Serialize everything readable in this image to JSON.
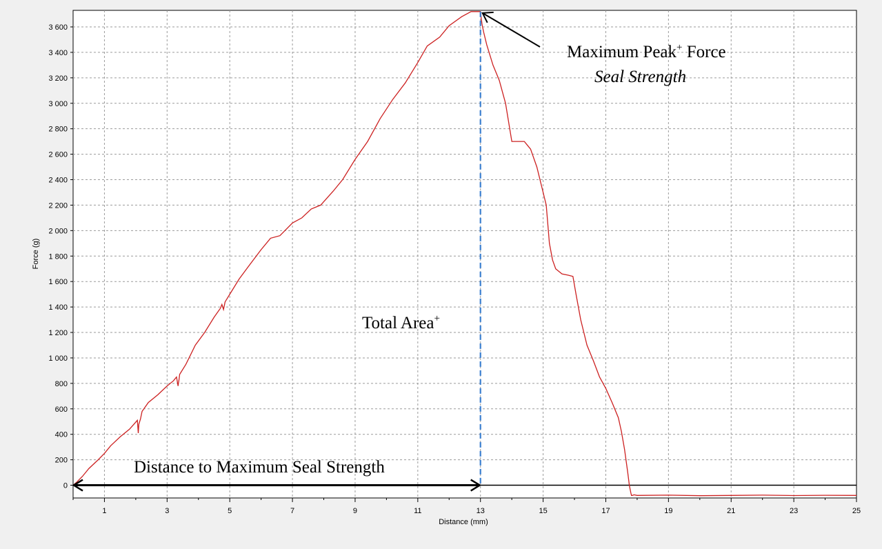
{
  "chart_data": {
    "type": "line",
    "xlabel": "Distance (mm)",
    "ylabel": "Force (g)",
    "xlim": [
      0,
      25
    ],
    "ylim": [
      -100,
      3730
    ],
    "x_ticks": [
      1,
      3,
      5,
      7,
      9,
      11,
      13,
      15,
      17,
      19,
      21,
      23,
      25
    ],
    "x_tick_labels": [
      "1",
      "3",
      "5",
      "7",
      "9",
      "11",
      "13",
      "15",
      "17",
      "19",
      "21",
      "23",
      "25"
    ],
    "y_ticks": [
      0,
      200,
      400,
      600,
      800,
      1000,
      1200,
      1400,
      1600,
      1800,
      2000,
      2200,
      2400,
      2600,
      2800,
      3000,
      3200,
      3400,
      3600
    ],
    "y_tick_labels": [
      "0",
      "200",
      "400",
      "600",
      "800",
      "1 000",
      "1 200",
      "1 400",
      "1 600",
      "1 800",
      "2 000",
      "2 200",
      "2 400",
      "2 600",
      "2 800",
      "3 000",
      "3 200",
      "3 400",
      "3 600"
    ],
    "grid": true,
    "colors": {
      "series": "#cc2020",
      "peak_line": "#3b7fd0",
      "background": "#ffffff",
      "frame": "#f0f0f0"
    },
    "series": [
      {
        "x": [
          0,
          0.1,
          0.3,
          0.5,
          0.8,
          1.0,
          1.2,
          1.5,
          1.8,
          2.05,
          2.08,
          2.1,
          2.15,
          2.2,
          2.4,
          2.7,
          3.0,
          3.2,
          3.3,
          3.35,
          3.38,
          3.4,
          3.6,
          3.9,
          4.2,
          4.5,
          4.7,
          4.75,
          4.8,
          4.85,
          5.0,
          5.3,
          5.6,
          6.0,
          6.3,
          6.6,
          7.0,
          7.3,
          7.6,
          7.9,
          8.3,
          8.6,
          9.0,
          9.4,
          9.8,
          10.2,
          10.6,
          11.0,
          11.3,
          11.7,
          12.0,
          12.4,
          12.7,
          12.9,
          13.0,
          13.05,
          13.1,
          13.2,
          13.4,
          13.6,
          13.8,
          14.0,
          14.2,
          14.4,
          14.6,
          14.8,
          15.0,
          15.1,
          15.2,
          15.3,
          15.4,
          15.6,
          15.8,
          15.95,
          16.05,
          16.2,
          16.4,
          16.6,
          16.8,
          17.0,
          17.2,
          17.4,
          17.5,
          17.6,
          17.7,
          17.75,
          17.8,
          17.82,
          17.85,
          17.9,
          18.0,
          19.0,
          20.0,
          21.0,
          22.0,
          23.0,
          24.0,
          25.0
        ],
        "y": [
          0,
          20,
          70,
          130,
          200,
          250,
          310,
          380,
          440,
          510,
          410,
          480,
          520,
          580,
          650,
          710,
          780,
          820,
          850,
          780,
          830,
          870,
          950,
          1100,
          1200,
          1320,
          1390,
          1420,
          1380,
          1440,
          1500,
          1620,
          1720,
          1850,
          1940,
          1960,
          2060,
          2100,
          2170,
          2200,
          2310,
          2400,
          2560,
          2700,
          2880,
          3030,
          3160,
          3320,
          3450,
          3520,
          3610,
          3680,
          3720,
          3720,
          3720,
          3620,
          3560,
          3460,
          3300,
          3180,
          3000,
          2700,
          2700,
          2700,
          2640,
          2500,
          2300,
          2200,
          1900,
          1770,
          1700,
          1660,
          1650,
          1640,
          1500,
          1300,
          1100,
          980,
          850,
          760,
          650,
          530,
          420,
          280,
          100,
          0,
          -60,
          -80,
          -80,
          -75,
          -80,
          -78,
          -82,
          -80,
          -78,
          -81,
          -79,
          -80
        ]
      }
    ],
    "annotations": {
      "peak_title_main": "Maximum Peak",
      "peak_title_sup": "+",
      "peak_title_end": " Force",
      "peak_subtitle": "Seal Strength",
      "area_main": "Total Area",
      "area_sup": "+",
      "distance_label": "Distance to Maximum Seal Strength",
      "peak_x": 13,
      "peak_y": 3720
    }
  }
}
